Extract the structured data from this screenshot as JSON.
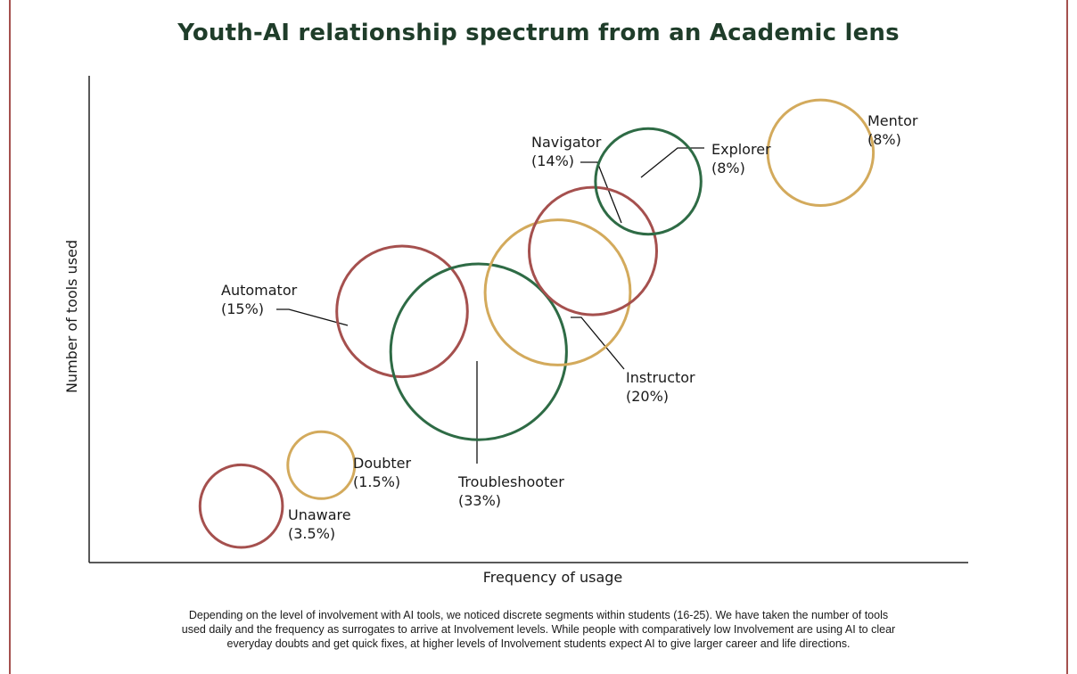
{
  "page": {
    "frame_color": "#a5504e",
    "title": "Youth-AI relationship spectrum from an Academic lens",
    "caption": "Depending on the level of involvement with AI tools, we noticed discrete segments within students (16-25). We have taken the number of tools used daily and the frequency as surrogates to arrive at Involvement levels. While people with comparatively low Involvement are using AI to clear everyday doubts and get quick fixes, at higher levels of Involvement students expect AI to give larger career and life directions."
  },
  "colors": {
    "red": "#a5504e",
    "green": "#2e6b45",
    "gold": "#d3aa5c",
    "title": "#1f3d2a"
  },
  "chart_data": {
    "type": "scatter",
    "title": "Youth-AI relationship spectrum from an Academic lens",
    "xlabel": "Frequency of usage",
    "ylabel": "Number of tools used",
    "grid": false,
    "tick_labels": false,
    "xlim": [
      0,
      100
    ],
    "ylim": [
      0,
      100
    ],
    "points": [
      {
        "name": "Unaware",
        "share": "(3.5%)",
        "pct": 3.5,
        "x": 17.3,
        "y": 11.6,
        "color": "red"
      },
      {
        "name": "Doubter",
        "share": "(1.5%)",
        "pct": 1.5,
        "x": 26.4,
        "y": 20.0,
        "color": "gold"
      },
      {
        "name": "Automator",
        "share": "(15%)",
        "pct": 15,
        "x": 35.6,
        "y": 51.6,
        "color": "red"
      },
      {
        "name": "Troubleshooter",
        "share": "(33%)",
        "pct": 33,
        "x": 44.3,
        "y": 43.3,
        "color": "green"
      },
      {
        "name": "Instructor",
        "share": "(20%)",
        "pct": 20,
        "x": 53.3,
        "y": 55.5,
        "color": "gold"
      },
      {
        "name": "Navigator",
        "share": "(14%)",
        "pct": 14,
        "x": 57.3,
        "y": 64.0,
        "color": "red"
      },
      {
        "name": "Explorer",
        "share": "(8%)",
        "pct": 8,
        "x": 63.6,
        "y": 78.3,
        "color": "green"
      },
      {
        "name": "Mentor",
        "share": "(8%)",
        "pct": 8,
        "x": 83.2,
        "y": 84.2,
        "color": "gold"
      }
    ]
  }
}
